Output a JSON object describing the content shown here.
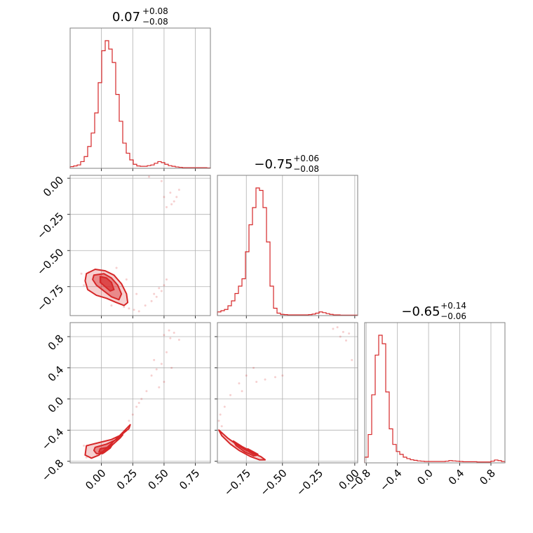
{
  "chart_data": {
    "type": "corner",
    "color": "#d62728",
    "grid": true,
    "parameters": [
      {
        "range": [
          -0.25,
          0.87
        ],
        "ticks": [
          0.0,
          0.25,
          0.5,
          0.75
        ],
        "tick_labels": [
          "0.00",
          "0.25",
          "0.50",
          "0.75"
        ],
        "title_value": "0.07",
        "title_plus": "+0.08",
        "title_minus": "−0.08",
        "hist": [
          0.5,
          0.7,
          1.0,
          2.0,
          3.5,
          6.5,
          10.5,
          16.5,
          25.5,
          35.0,
          38.0,
          35.5,
          31.5,
          22.0,
          14.0,
          7.5,
          4.5,
          2.5,
          1.2,
          0.7,
          0.6,
          0.6,
          0.8,
          1.0,
          1.5,
          2.0,
          1.7,
          1.2,
          0.8,
          0.6,
          0.4,
          0.3,
          0.2,
          0.2,
          0.2,
          0.2,
          0.2,
          0.2,
          0.2,
          0.1
        ]
      },
      {
        "range": [
          -0.95,
          0.02
        ],
        "ticks": [
          -0.75,
          -0.5,
          -0.25,
          0.0
        ],
        "tick_labels": [
          "−0.75",
          "−0.50",
          "−0.25",
          "0.00"
        ],
        "title_value": "−0.75",
        "title_plus": "+0.06",
        "title_minus": "−0.08",
        "hist": [
          1.5,
          2.0,
          2.5,
          4.0,
          6.0,
          9.0,
          12.0,
          15.0,
          26.0,
          37.0,
          44.0,
          52.0,
          51.0,
          44.0,
          30.0,
          12.0,
          3.0,
          1.0,
          0.5,
          0.4,
          0.3,
          0.3,
          0.3,
          0.3,
          0.3,
          0.3,
          0.4,
          0.6,
          1.0,
          1.5,
          1.2,
          0.8,
          0.5,
          0.3,
          0.3,
          0.2,
          0.2,
          0.2,
          0.2,
          0.2
        ]
      },
      {
        "range": [
          -0.82,
          0.98
        ],
        "ticks": [
          -0.8,
          -0.4,
          0.0,
          0.4,
          0.8
        ],
        "tick_labels": [
          "−0.8",
          "−0.4",
          "0.0",
          "0.4",
          "0.8"
        ],
        "title_value": "−0.65",
        "title_plus": "+0.14",
        "title_minus": "−0.06",
        "hist": [
          2.0,
          10.0,
          24.0,
          38.0,
          45.0,
          42.0,
          25.0,
          12.0,
          6.5,
          4.0,
          3.0,
          2.0,
          1.5,
          1.1,
          0.9,
          0.7,
          0.6,
          0.5,
          0.5,
          0.5,
          0.5,
          0.5,
          0.5,
          0.6,
          0.8,
          0.7,
          0.6,
          0.5,
          0.4,
          0.4,
          0.4,
          0.4,
          0.3,
          0.3,
          0.3,
          0.3,
          0.6,
          1.0,
          0.8,
          0.5
        ]
      }
    ],
    "joint": {
      "x0_x1": {
        "contours": [
          [
            [
              -0.12,
              -0.66
            ],
            [
              -0.05,
              -0.63
            ],
            [
              0.03,
              -0.64
            ],
            [
              0.1,
              -0.67
            ],
            [
              0.16,
              -0.73
            ],
            [
              0.2,
              -0.8
            ],
            [
              0.21,
              -0.86
            ],
            [
              0.18,
              -0.88
            ],
            [
              0.12,
              -0.86
            ],
            [
              0.04,
              -0.83
            ],
            [
              -0.04,
              -0.81
            ],
            [
              -0.11,
              -0.77
            ],
            [
              -0.13,
              -0.71
            ]
          ],
          [
            [
              -0.06,
              -0.67
            ],
            [
              0.02,
              -0.66
            ],
            [
              0.08,
              -0.69
            ],
            [
              0.13,
              -0.74
            ],
            [
              0.16,
              -0.8
            ],
            [
              0.14,
              -0.84
            ],
            [
              0.08,
              -0.82
            ],
            [
              0.02,
              -0.78
            ],
            [
              -0.04,
              -0.74
            ],
            [
              -0.07,
              -0.7
            ]
          ],
          [
            [
              -0.01,
              -0.68
            ],
            [
              0.04,
              -0.69
            ],
            [
              0.08,
              -0.72
            ],
            [
              0.1,
              -0.77
            ],
            [
              0.07,
              -0.78
            ],
            [
              0.03,
              -0.75
            ],
            [
              -0.01,
              -0.72
            ]
          ]
        ],
        "scatter": [
          [
            0.5,
            -0.13
          ],
          [
            0.55,
            -0.1
          ],
          [
            0.58,
            -0.16
          ],
          [
            0.62,
            -0.08
          ],
          [
            0.52,
            -0.2
          ],
          [
            0.6,
            -0.13
          ],
          [
            0.38,
            0.01
          ],
          [
            0.48,
            -0.02
          ],
          [
            0.56,
            -0.18
          ],
          [
            0.3,
            -0.92
          ],
          [
            0.35,
            -0.88
          ],
          [
            0.4,
            -0.85
          ],
          [
            0.44,
            -0.82
          ],
          [
            0.48,
            -0.78
          ],
          [
            0.5,
            -0.74
          ],
          [
            0.42,
            -0.8
          ],
          [
            0.52,
            -0.7
          ],
          [
            0.46,
            -0.76
          ],
          [
            -0.14,
            -0.74
          ],
          [
            -0.1,
            -0.65
          ],
          [
            0.18,
            -0.89
          ],
          [
            0.22,
            -0.9
          ],
          [
            0.26,
            -0.91
          ],
          [
            0.12,
            -0.62
          ],
          [
            0.2,
            -0.7
          ],
          [
            -0.16,
            -0.66
          ],
          [
            0.08,
            -0.88
          ],
          [
            0.28,
            -0.8
          ]
        ]
      },
      "x0_x2": {
        "contours": [
          [
            [
              -0.12,
              -0.6
            ],
            [
              -0.02,
              -0.56
            ],
            [
              0.08,
              -0.52
            ],
            [
              0.16,
              -0.46
            ],
            [
              0.22,
              -0.38
            ],
            [
              0.23,
              -0.33
            ],
            [
              0.2,
              -0.38
            ],
            [
              0.14,
              -0.48
            ],
            [
              0.06,
              -0.6
            ],
            [
              -0.02,
              -0.72
            ],
            [
              -0.08,
              -0.76
            ],
            [
              -0.13,
              -0.72
            ]
          ],
          [
            [
              -0.05,
              -0.62
            ],
            [
              0.04,
              -0.58
            ],
            [
              0.12,
              -0.52
            ],
            [
              0.17,
              -0.46
            ],
            [
              0.15,
              -0.5
            ],
            [
              0.08,
              -0.6
            ],
            [
              0.01,
              -0.7
            ],
            [
              -0.04,
              -0.7
            ],
            [
              -0.06,
              -0.66
            ]
          ],
          [
            [
              -0.01,
              -0.64
            ],
            [
              0.05,
              -0.62
            ],
            [
              0.09,
              -0.58
            ],
            [
              0.07,
              -0.63
            ],
            [
              0.02,
              -0.69
            ],
            [
              -0.02,
              -0.68
            ]
          ]
        ],
        "scatter": [
          [
            0.5,
            0.82
          ],
          [
            0.55,
            0.78
          ],
          [
            0.58,
            0.85
          ],
          [
            0.62,
            0.76
          ],
          [
            0.54,
            0.88
          ],
          [
            0.4,
            0.3
          ],
          [
            0.44,
            0.38
          ],
          [
            0.48,
            0.45
          ],
          [
            0.5,
            0.22
          ],
          [
            0.46,
            0.15
          ],
          [
            0.42,
            0.5
          ],
          [
            0.52,
            0.6
          ],
          [
            0.36,
            0.1
          ],
          [
            0.32,
            0.0
          ],
          [
            0.28,
            -0.1
          ],
          [
            0.25,
            -0.2
          ],
          [
            -0.14,
            -0.6
          ],
          [
            -0.12,
            -0.75
          ],
          [
            0.22,
            -0.28
          ],
          [
            0.3,
            -0.05
          ],
          [
            0.56,
            0.4
          ]
        ]
      },
      "x1_x2": {
        "contours": [
          [
            [
              -0.94,
              -0.4
            ],
            [
              -0.88,
              -0.5
            ],
            [
              -0.82,
              -0.58
            ],
            [
              -0.76,
              -0.65
            ],
            [
              -0.7,
              -0.7
            ],
            [
              -0.65,
              -0.74
            ],
            [
              -0.62,
              -0.78
            ],
            [
              -0.66,
              -0.78
            ],
            [
              -0.72,
              -0.74
            ],
            [
              -0.8,
              -0.66
            ],
            [
              -0.86,
              -0.58
            ],
            [
              -0.92,
              -0.47
            ]
          ],
          [
            [
              -0.84,
              -0.54
            ],
            [
              -0.78,
              -0.61
            ],
            [
              -0.72,
              -0.67
            ],
            [
              -0.67,
              -0.72
            ],
            [
              -0.7,
              -0.73
            ],
            [
              -0.76,
              -0.68
            ],
            [
              -0.82,
              -0.6
            ]
          ],
          [
            [
              -0.74,
              -0.64
            ],
            [
              -0.7,
              -0.68
            ],
            [
              -0.67,
              -0.71
            ],
            [
              -0.7,
              -0.71
            ],
            [
              -0.73,
              -0.68
            ]
          ]
        ],
        "scatter": [
          [
            -0.93,
            -0.2
          ],
          [
            -0.94,
            -0.28
          ],
          [
            -0.92,
            -0.35
          ],
          [
            -0.8,
            0.2
          ],
          [
            -0.75,
            0.3
          ],
          [
            -0.7,
            0.4
          ],
          [
            -0.68,
            0.22
          ],
          [
            -0.62,
            0.25
          ],
          [
            -0.55,
            0.28
          ],
          [
            -0.5,
            0.3
          ],
          [
            -0.78,
            0.1
          ],
          [
            -0.86,
            0.05
          ],
          [
            -0.1,
            0.8
          ],
          [
            -0.08,
            0.86
          ],
          [
            -0.12,
            0.92
          ],
          [
            -0.06,
            0.75
          ],
          [
            -0.04,
            0.84
          ],
          [
            -0.15,
            0.9
          ],
          [
            -0.02,
            0.5
          ],
          [
            -0.9,
            -0.1
          ]
        ]
      }
    }
  }
}
